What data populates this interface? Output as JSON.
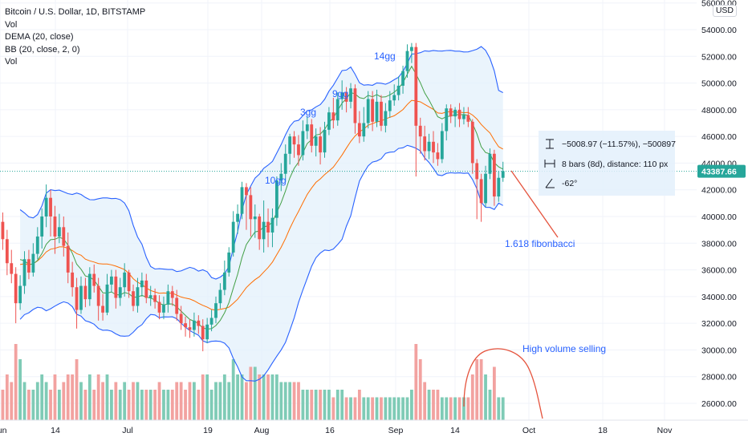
{
  "legend": {
    "title": "Bitcoin / U.S. Dollar, 1D, BITSTAMP",
    "line2": "Vol",
    "line3": "DEMA (20, close)",
    "line4": "BB (20, close, 2, 0)",
    "line5": "Vol"
  },
  "currency_badge": "USD",
  "last_price_label": "43387.66",
  "colors": {
    "up": "#26a69a",
    "down": "#ef5350",
    "up_vol": "#7fcbb6",
    "down_vol": "#f2a2a0",
    "bb": "#2962ff",
    "bb_fill": "#e3f0fb",
    "dema": "#ff6d00",
    "basis": "#43a047",
    "anno": "#2962ff",
    "arrow": "#e5533d",
    "price_badge": "#26a69a"
  },
  "measure": {
    "line1": "−5008.97 (−11.57%), −500897",
    "line2": "8 bars (8d), distance: 110 px",
    "line3": "-62°"
  },
  "annotations": {
    "a10": "10gg",
    "a3": "3gg",
    "a9": "9gg",
    "a14": "14gg",
    "fib": "1.618 fibonbacci",
    "volume": "High volume selling"
  },
  "chart_data": {
    "type": "candlestick",
    "title": "Bitcoin / U.S. Dollar, 1D, BITSTAMP",
    "y_ticks": [
      26000,
      28000,
      30000,
      32000,
      34000,
      36000,
      38000,
      40000,
      42000,
      44000,
      46000,
      48000,
      50000,
      52000,
      54000,
      56000
    ],
    "y_tick_labels": [
      "26000.00",
      "28000.00",
      "30000.00",
      "32000.00",
      "34000.00",
      "36000.00",
      "38000.00",
      "40000.00",
      "42000.00",
      "44000.00",
      "46000.00",
      "48000.00",
      "50000.00",
      "52000.00",
      "54000.00",
      "56000.00"
    ],
    "ylim": [
      24500,
      56500
    ],
    "x_ticks": [
      "Jun",
      "14",
      "Jul",
      "19",
      "Aug",
      "16",
      "Sep",
      "14",
      "Oct",
      "18",
      "Nov"
    ],
    "last_price": 43387.66,
    "candles": [
      [
        40500,
        39600,
        38500,
        41000
      ],
      [
        39600,
        38300,
        37500,
        40300
      ],
      [
        38300,
        36500,
        35600,
        39000
      ],
      [
        36500,
        35700,
        35000,
        37500
      ],
      [
        35700,
        33500,
        32000,
        36200
      ],
      [
        33500,
        34800,
        33000,
        35600
      ],
      [
        34800,
        36800,
        34200,
        37400
      ],
      [
        36800,
        35800,
        35300,
        37500
      ],
      [
        35800,
        37200,
        35500,
        38000
      ],
      [
        37200,
        38500,
        36800,
        39200
      ],
      [
        38500,
        40000,
        37600,
        40600
      ],
      [
        40000,
        41400,
        39200,
        42400
      ],
      [
        41400,
        40000,
        38500,
        42000
      ],
      [
        40000,
        38500,
        37200,
        40800
      ],
      [
        38500,
        39200,
        38000,
        40200
      ],
      [
        39200,
        37800,
        37000,
        40000
      ],
      [
        37800,
        35800,
        35000,
        38800
      ],
      [
        35800,
        34700,
        34000,
        36600
      ],
      [
        34700,
        33000,
        31600,
        35400
      ],
      [
        33000,
        34800,
        32700,
        35500
      ],
      [
        34800,
        33800,
        33200,
        35400
      ],
      [
        33800,
        35700,
        33300,
        36200
      ],
      [
        35700,
        34800,
        34300,
        36400
      ],
      [
        34800,
        33300,
        32200,
        35400
      ],
      [
        33300,
        32800,
        32200,
        34200
      ],
      [
        32800,
        34900,
        32600,
        35700
      ],
      [
        34900,
        35500,
        34300,
        36000
      ],
      [
        35500,
        33900,
        33100,
        36000
      ],
      [
        33900,
        34700,
        33300,
        35400
      ],
      [
        34700,
        35800,
        34000,
        36500
      ],
      [
        35800,
        34400,
        33900,
        36000
      ],
      [
        34400,
        33300,
        32900,
        34900
      ],
      [
        33300,
        34700,
        32800,
        35400
      ],
      [
        34700,
        35200,
        34000,
        35800
      ],
      [
        35200,
        33900,
        33500,
        35700
      ],
      [
        33900,
        34100,
        33300,
        34800
      ],
      [
        34100,
        33600,
        33100,
        34600
      ],
      [
        33600,
        32800,
        32300,
        34100
      ],
      [
        32800,
        33400,
        32300,
        34000
      ],
      [
        33400,
        34400,
        32800,
        34900
      ],
      [
        34400,
        33900,
        33300,
        34800
      ],
      [
        33900,
        32700,
        32200,
        34500
      ],
      [
        32700,
        32000,
        31500,
        33300
      ],
      [
        32000,
        31700,
        31000,
        32500
      ],
      [
        31700,
        31500,
        30900,
        32300
      ],
      [
        31500,
        32200,
        31000,
        32800
      ],
      [
        32200,
        31800,
        31200,
        32600
      ],
      [
        31800,
        30800,
        29900,
        32300
      ],
      [
        30800,
        31900,
        30500,
        32400
      ],
      [
        31900,
        32400,
        31400,
        33000
      ],
      [
        32400,
        33500,
        32000,
        34000
      ],
      [
        33500,
        34500,
        33100,
        35000
      ],
      [
        34500,
        35800,
        34100,
        36700
      ],
      [
        35800,
        37300,
        35500,
        37700
      ],
      [
        37300,
        39600,
        37000,
        40400
      ],
      [
        39600,
        40200,
        38700,
        40900
      ],
      [
        40200,
        42200,
        39800,
        42600
      ],
      [
        42200,
        41600,
        39000,
        42500
      ],
      [
        41600,
        39800,
        38500,
        42200
      ],
      [
        39800,
        40000,
        38400,
        40900
      ],
      [
        40000,
        38300,
        37500,
        40200
      ],
      [
        38300,
        39600,
        37300,
        41200
      ],
      [
        39600,
        38800,
        37700,
        40600
      ],
      [
        38800,
        39900,
        37700,
        40600
      ],
      [
        39900,
        42700,
        39300,
        43000
      ],
      [
        42700,
        43200,
        41900,
        44000
      ],
      [
        43200,
        44700,
        42600,
        45400
      ],
      [
        44700,
        46000,
        43900,
        46200
      ],
      [
        46000,
        45400,
        44400,
        46400
      ],
      [
        45400,
        44600,
        43800,
        46100
      ],
      [
        44600,
        46400,
        44200,
        47200
      ],
      [
        46400,
        46900,
        45800,
        47500
      ],
      [
        46900,
        45300,
        44800,
        47300
      ],
      [
        45300,
        46000,
        44500,
        46600
      ],
      [
        46000,
        44800,
        43900,
        46700
      ],
      [
        44800,
        46500,
        44400,
        47100
      ],
      [
        46500,
        47800,
        46100,
        48200
      ],
      [
        47800,
        47200,
        46600,
        48900
      ],
      [
        47200,
        48800,
        46800,
        49300
      ],
      [
        48800,
        49300,
        48000,
        50200
      ],
      [
        49300,
        48600,
        47800,
        49700
      ],
      [
        48600,
        49600,
        48100,
        50000
      ],
      [
        49600,
        47000,
        46200,
        49900
      ],
      [
        47000,
        46000,
        45500,
        47900
      ],
      [
        46000,
        47000,
        45600,
        48200
      ],
      [
        47000,
        48800,
        46600,
        49400
      ],
      [
        48800,
        47100,
        46400,
        49400
      ],
      [
        47100,
        48600,
        46700,
        49500
      ],
      [
        48600,
        46800,
        46400,
        49100
      ],
      [
        46800,
        47900,
        46300,
        48500
      ],
      [
        47900,
        48700,
        47400,
        49400
      ],
      [
        48700,
        49100,
        48300,
        49900
      ],
      [
        49100,
        49800,
        48700,
        50500
      ],
      [
        49800,
        50900,
        49200,
        51300
      ],
      [
        50900,
        52400,
        50400,
        52900
      ],
      [
        52400,
        52700,
        51500,
        53000
      ],
      [
        52700,
        46800,
        43000,
        53000
      ],
      [
        46800,
        46000,
        44700,
        47400
      ],
      [
        46000,
        44900,
        44200,
        46800
      ],
      [
        44900,
        45600,
        44300,
        46200
      ],
      [
        45600,
        44800,
        44000,
        46400
      ],
      [
        44800,
        44300,
        43800,
        45500
      ],
      [
        44300,
        46400,
        44000,
        47000
      ],
      [
        46400,
        48100,
        45700,
        48400
      ],
      [
        48100,
        47500,
        47000,
        48400
      ],
      [
        47500,
        48000,
        46700,
        48200
      ],
      [
        48000,
        47300,
        46700,
        48500
      ],
      [
        47300,
        47600,
        46900,
        48200
      ],
      [
        47600,
        47100,
        46700,
        48200
      ],
      [
        47100,
        44000,
        43200,
        47300
      ],
      [
        44000,
        42800,
        39800,
        44300
      ],
      [
        42800,
        41000,
        39600,
        43200
      ],
      [
        41000,
        43200,
        40700,
        43800
      ],
      [
        43200,
        44700,
        42800,
        45100
      ],
      [
        44700,
        41500,
        40800,
        45000
      ],
      [
        41500,
        42900,
        41100,
        43400
      ],
      [
        42900,
        43400,
        42600,
        44100
      ]
    ],
    "volume": [
      3,
      4,
      6,
      5,
      10,
      8,
      5,
      4,
      4,
      5,
      6,
      5,
      4,
      6,
      4,
      5,
      6,
      6,
      8,
      5,
      4,
      6,
      4,
      6,
      5,
      6,
      4,
      5,
      4,
      5,
      4,
      5,
      5,
      4,
      4,
      4,
      4,
      5,
      4,
      4,
      4,
      5,
      5,
      4,
      5,
      5,
      4,
      6,
      6,
      4,
      5,
      5,
      6,
      5,
      8,
      6,
      6,
      5,
      7,
      7,
      6,
      6,
      6,
      6,
      6,
      5,
      5,
      5,
      5,
      5,
      4,
      4,
      4,
      4,
      4,
      4,
      4,
      3,
      4,
      4,
      3,
      3,
      3,
      4,
      3,
      3,
      3,
      3,
      3,
      3,
      3,
      3,
      3,
      3,
      3,
      4,
      10,
      8,
      5,
      4,
      4,
      4,
      3,
      3,
      3,
      3,
      3,
      3,
      3,
      6,
      8,
      8,
      6,
      4,
      7,
      3,
      3
    ],
    "bb_upper": [],
    "annotations": [
      "10gg",
      "3gg",
      "9gg",
      "14gg",
      "1.618 fibonbacci",
      "High volume selling"
    ]
  }
}
